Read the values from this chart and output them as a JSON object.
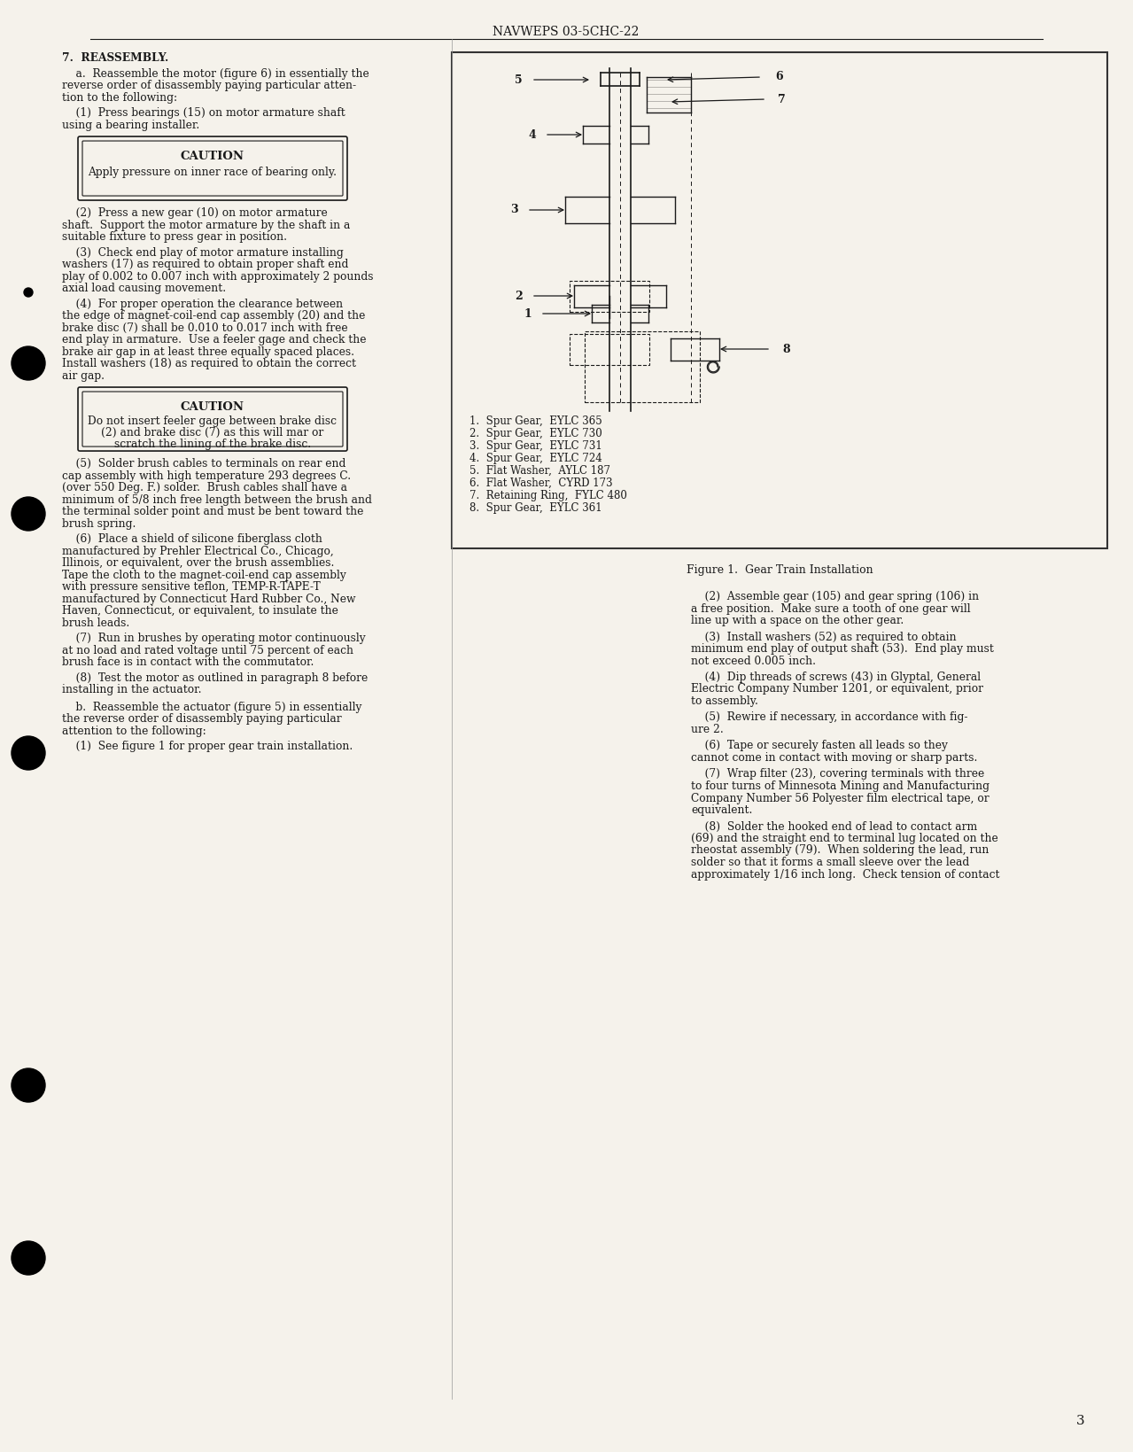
{
  "page_header": "NAVWEPS 03-5CHC-22",
  "page_number": "3",
  "background_color": "#f5f2eb",
  "text_color": "#1a1a1a",
  "left_column": {
    "section7_heading": "7.  REASSEMBLY.",
    "para_a": "    a.  Reassemble the motor (figure 6) in essentially the\nreverse order of disassembly paying particular atten-\ntion to the following:",
    "para_1": "    (1)  Press bearings (15) on motor armature shaft\nusing a bearing installer.",
    "caution1_text": "CAUTION",
    "caution1_body": "Apply pressure on inner race of bearing only.",
    "para_2": "    (2)  Press a new gear (10) on motor armature\nshaft.  Support the motor armature by the shaft in a\nsuitable fixture to press gear in position.",
    "para_3": "    (3)  Check end play of motor armature installing\nwashers (17) as required to obtain proper shaft end\nplay of 0.002 to 0.007 inch with approximately 2 pounds\naxial load causing movement.",
    "para_4": "    (4)  For proper operation the clearance between\nthe edge of magnet-coil-end cap assembly (20) and the\nbrake disc (7) shall be 0.010 to 0.017 inch with free\nend play in armature.  Use a feeler gage and check the\nbrake air gap in at least three equally spaced places.\nInstall washers (18) as required to obtain the correct\nair gap.",
    "caution2_text": "CAUTION",
    "caution2_body": "Do not insert feeler gage between brake disc\n(2) and brake disc (7) as this will mar or\nscratch the lining of the brake disc.",
    "para_5": "    (5)  Solder brush cables to terminals on rear end\ncap assembly with high temperature 293 degrees C.\n(over 550 Deg. F.) solder.  Brush cables shall have a\nminimum of 5/8 inch free length between the brush and\nthe terminal solder point and must be bent toward the\nbrush spring.",
    "para_6": "    (6)  Place a shield of silicone fiberglass cloth\nmanufactured by Prehler Electrical Co., Chicago,\nIllinois, or equivalent, over the brush assemblies.\nTape the cloth to the magnet-coil-end cap assembly\nwith pressure sensitive teflon, TEMP-R-TAPE-T\nmanufactured by Connecticut Hard Rubber Co., New\nHaven, Connecticut, or equivalent, to insulate the\nbrush leads.",
    "para_7": "    (7)  Run in brushes by operating motor continuously\nat no load and rated voltage until 75 percent of each\nbrush face is in contact with the commutator.",
    "para_8": "    (8)  Test the motor as outlined in paragraph 8 before\ninstalling in the actuator.",
    "para_b": "    b.  Reassemble the actuator (figure 5) in essentially\nthe reverse order of disassembly paying particular\nattention to the following:",
    "para_b1": "    (1)  See figure 1 for proper gear train installation."
  },
  "right_column": {
    "figure_caption": "Figure 1.  Gear Train Installation",
    "legend": [
      "1.  Spur Gear,  EYLC 365",
      "2.  Spur Gear,  EYLC 730",
      "3.  Spur Gear,  EYLC 731",
      "4.  Spur Gear,  EYLC 724",
      "5.  Flat Washer,  AYLC 187",
      "6.  Flat Washer,  CYRD 173",
      "7.  Retaining Ring,  FYLC 480",
      "8.  Spur Gear,  EYLC 361"
    ],
    "right_col_paras": [
      "    (2)  Assemble gear (105) and gear spring (106) in\na free position.  Make sure a tooth of one gear will\nline up with a space on the other gear.",
      "    (3)  Install washers (52) as required to obtain\nminimum end play of output shaft (53).  End play must\nnot exceed 0.005 inch.",
      "    (4)  Dip threads of screws (43) in Glyptal, General\nElectric Company Number 1201, or equivalent, prior\nto assembly.",
      "    (5)  Rewire if necessary, in accordance with fig-\nure 2.",
      "    (6)  Tape or securely fasten all leads so they\ncannot come in contact with moving or sharp parts.",
      "    (7)  Wrap filter (23), covering terminals with three\nto four turns of Minnesota Mining and Manufacturing\nCompany Number 56 Polyester film electrical tape, or\nequivalent.",
      "    (8)  Solder the hooked end of lead to contact arm\n(69) and the straight end to terminal lug located on the\nrheostat assembly (79).  When soldering the lead, run\nsolder so that it forms a small sleeve over the lead\napproximately 1/16 inch long.  Check tension of contact"
    ]
  },
  "black_circles": [
    [
      0.025,
      0.13
    ],
    [
      0.025,
      0.245
    ],
    [
      0.025,
      0.52
    ],
    [
      0.025,
      0.72
    ],
    [
      0.025,
      0.84
    ]
  ]
}
